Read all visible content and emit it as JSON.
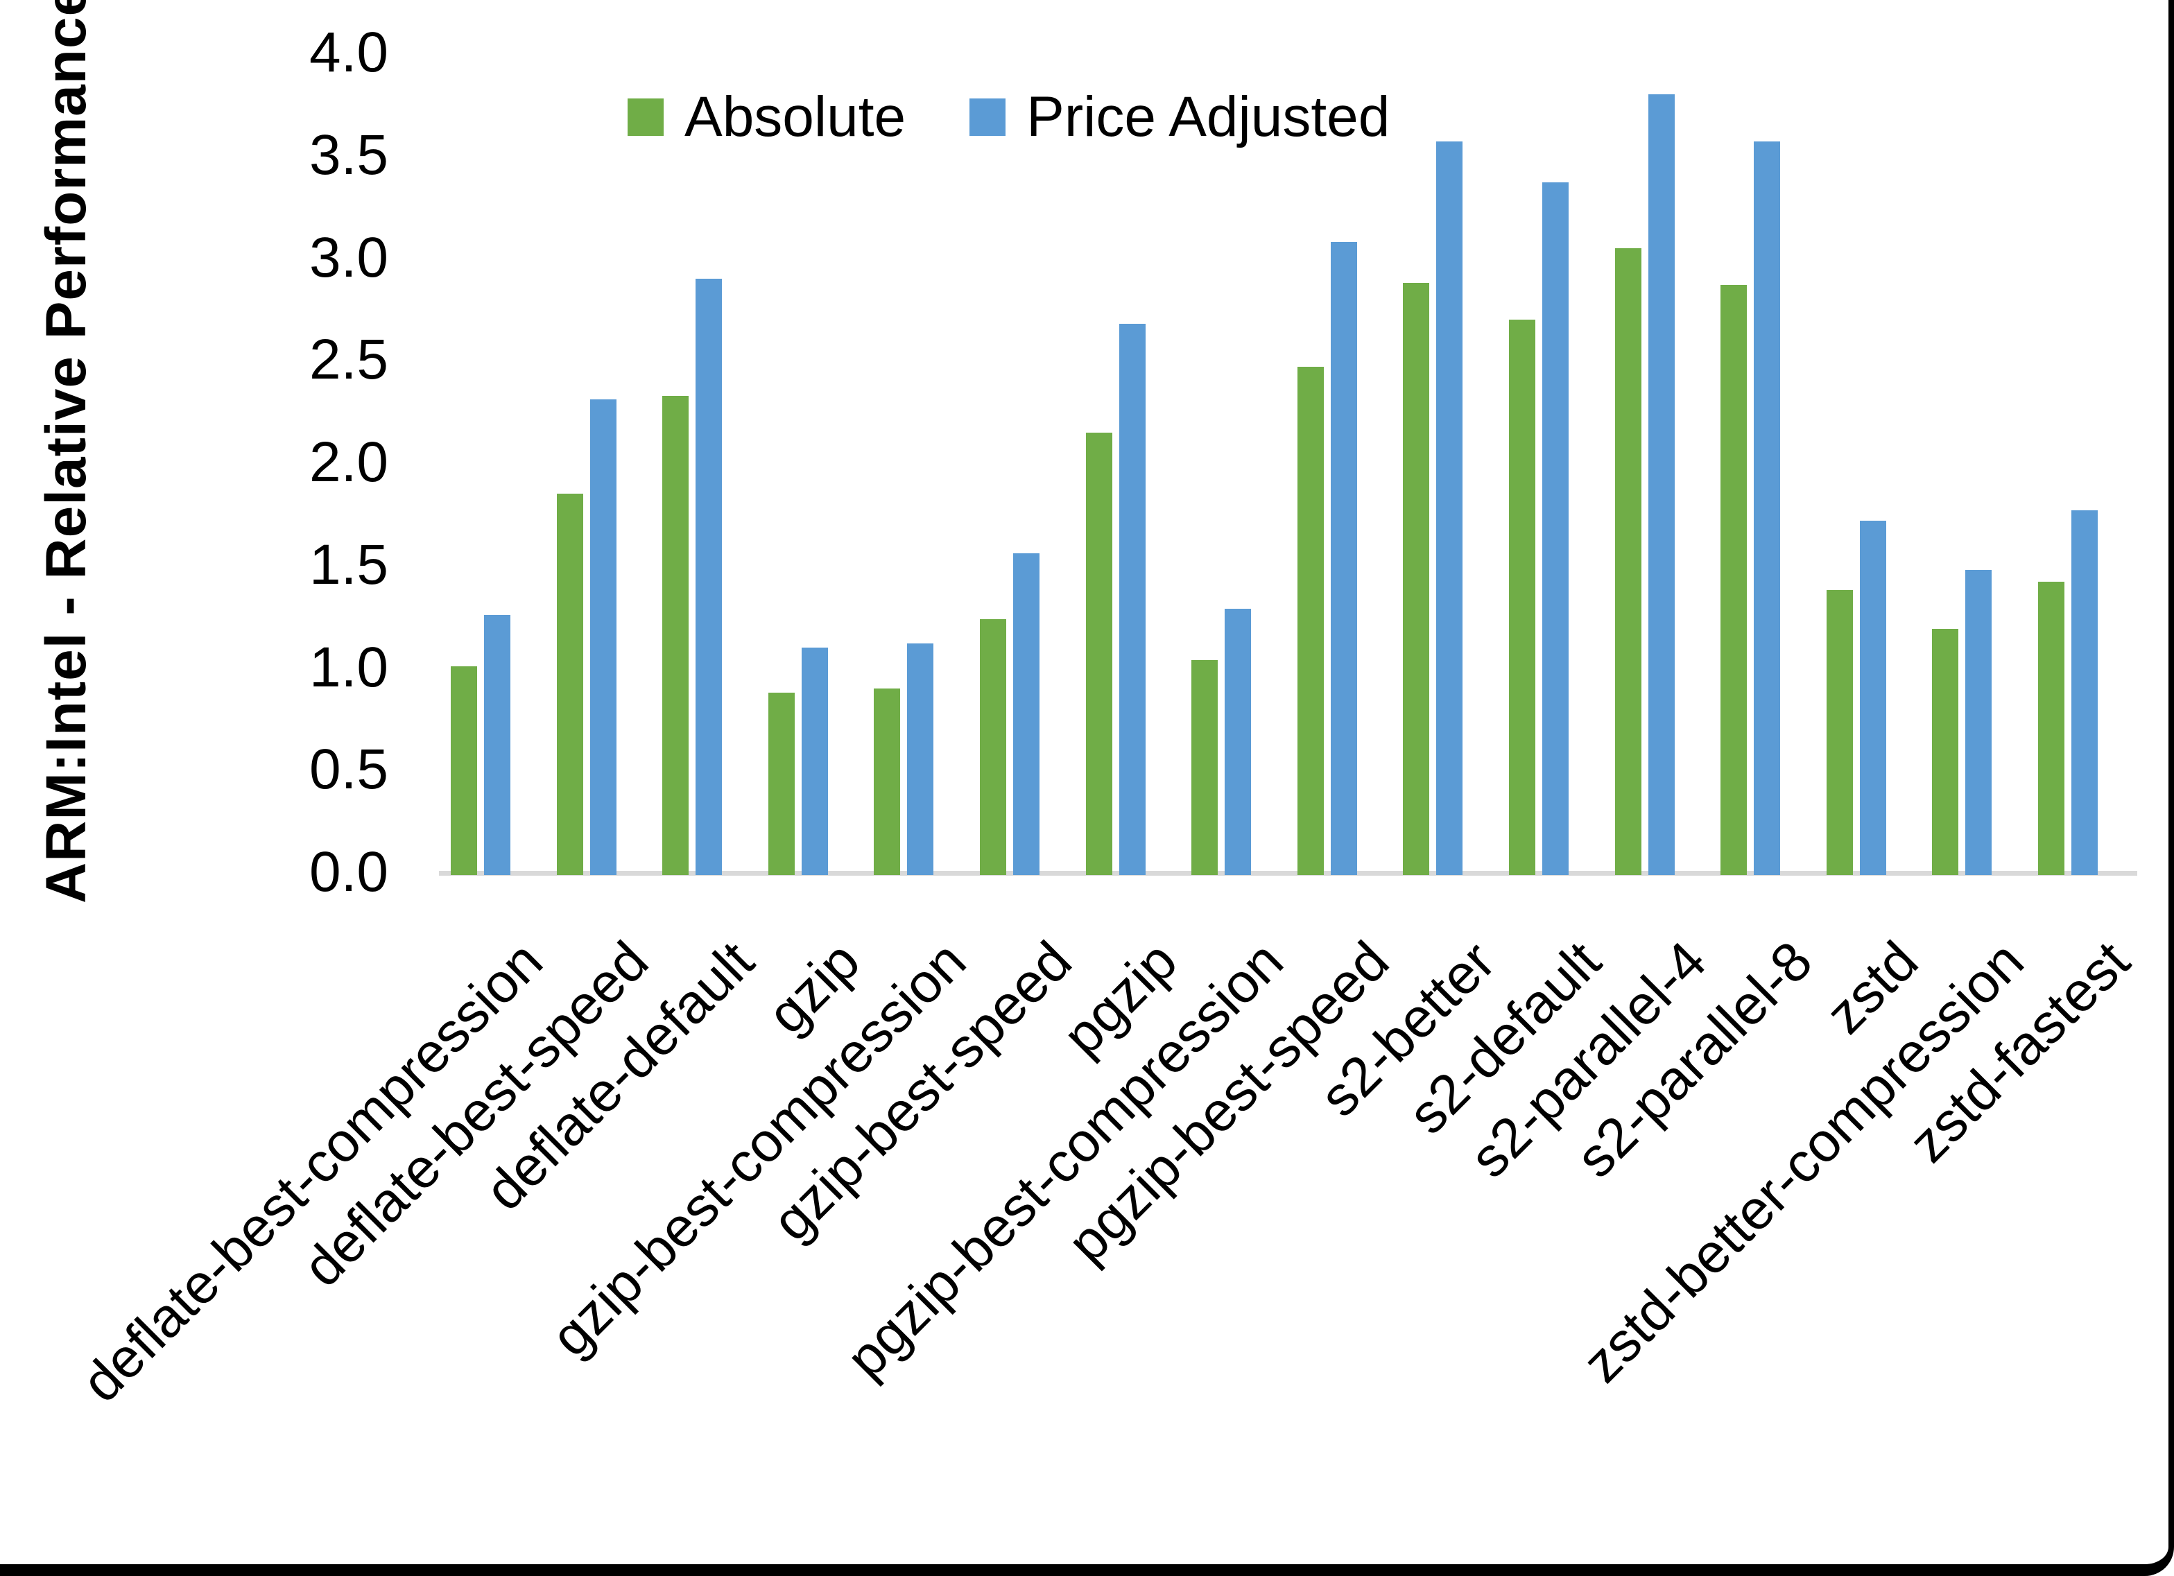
{
  "chart_data": {
    "type": "bar",
    "title": "",
    "xlabel": "",
    "ylabel": "ARM:Intel - Relative Performance",
    "ylim": [
      0.0,
      4.0
    ],
    "ytick_step": 0.5,
    "ytick_labels": [
      "0.0",
      "0.5",
      "1.0",
      "1.5",
      "2.0",
      "2.5",
      "3.0",
      "3.5",
      "4.0"
    ],
    "grid": false,
    "legend_position": "top-center",
    "categories": [
      "deflate-best-compression",
      "deflate-best-speed",
      "deflate-default",
      "gzip",
      "gzip-best-compression",
      "gzip-best-speed",
      "pgzip",
      "pgzip-best-compression",
      "pgzip-best-speed",
      "s2-better",
      "s2-default",
      "s2-parallel-4",
      "s2-parallel-8",
      "zstd",
      "zstd-better-compression",
      "zstd-fastest"
    ],
    "series": [
      {
        "name": "Absolute",
        "color": "#70AD47",
        "values": [
          1.02,
          1.86,
          2.34,
          0.89,
          0.91,
          1.25,
          2.16,
          1.05,
          2.48,
          2.89,
          2.71,
          3.06,
          2.88,
          1.39,
          1.2,
          1.43
        ]
      },
      {
        "name": "Price Adjusted",
        "color": "#5B9BD5",
        "values": [
          1.27,
          2.32,
          2.91,
          1.11,
          1.13,
          1.57,
          2.69,
          1.3,
          3.09,
          3.58,
          3.38,
          3.81,
          3.58,
          1.73,
          1.49,
          1.78
        ]
      }
    ]
  },
  "colors": {
    "background": "#FFFFFF",
    "axis_line": "#D9D9D9",
    "text": "#000000",
    "frame": "#000000"
  }
}
